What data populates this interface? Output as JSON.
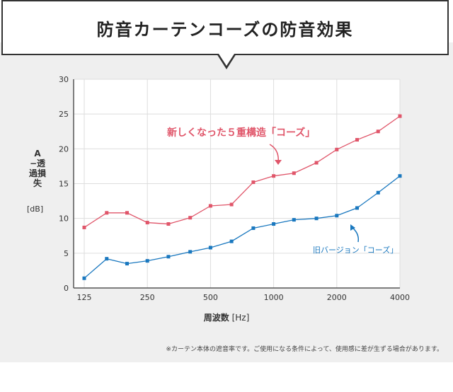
{
  "header": {
    "title": "防音カーテンコーズの防音効果"
  },
  "note": "※カーテン本体の遮音率です。ご使用になる条件によって、使用感に差が生ずる場合があります。",
  "chart_data": {
    "type": "line",
    "title": "防音カーテンコーズの防音効果",
    "xlabel": "周波数",
    "xunit": "[Hz]",
    "ylabel": "A−透過損失",
    "yunit": "[dB]",
    "ylim": [
      0,
      30
    ],
    "yticks": [
      "0",
      "5",
      "10",
      "15",
      "20",
      "25",
      "30"
    ],
    "xtick_labels": [
      "125",
      "250",
      "500",
      "1000",
      "2000",
      "4000"
    ],
    "x": [
      125,
      160,
      200,
      250,
      315,
      400,
      500,
      630,
      800,
      1000,
      1250,
      1600,
      2000,
      2500,
      3150,
      4000
    ],
    "grid": true,
    "series": [
      {
        "name": "新しくなった５重構造「コーズ」",
        "color": "#e0566a",
        "values": [
          8.7,
          10.8,
          10.8,
          9.4,
          9.2,
          10.1,
          11.8,
          12.0,
          15.2,
          16.1,
          16.5,
          18.0,
          19.9,
          21.3,
          22.5,
          24.7
        ]
      },
      {
        "name": "旧バージョン「コーズ」",
        "color": "#1a78bf",
        "values": [
          1.4,
          4.2,
          3.5,
          3.9,
          4.5,
          5.2,
          5.8,
          6.7,
          8.6,
          9.2,
          9.8,
          10.0,
          10.4,
          11.5,
          13.7,
          16.1
        ]
      }
    ]
  }
}
